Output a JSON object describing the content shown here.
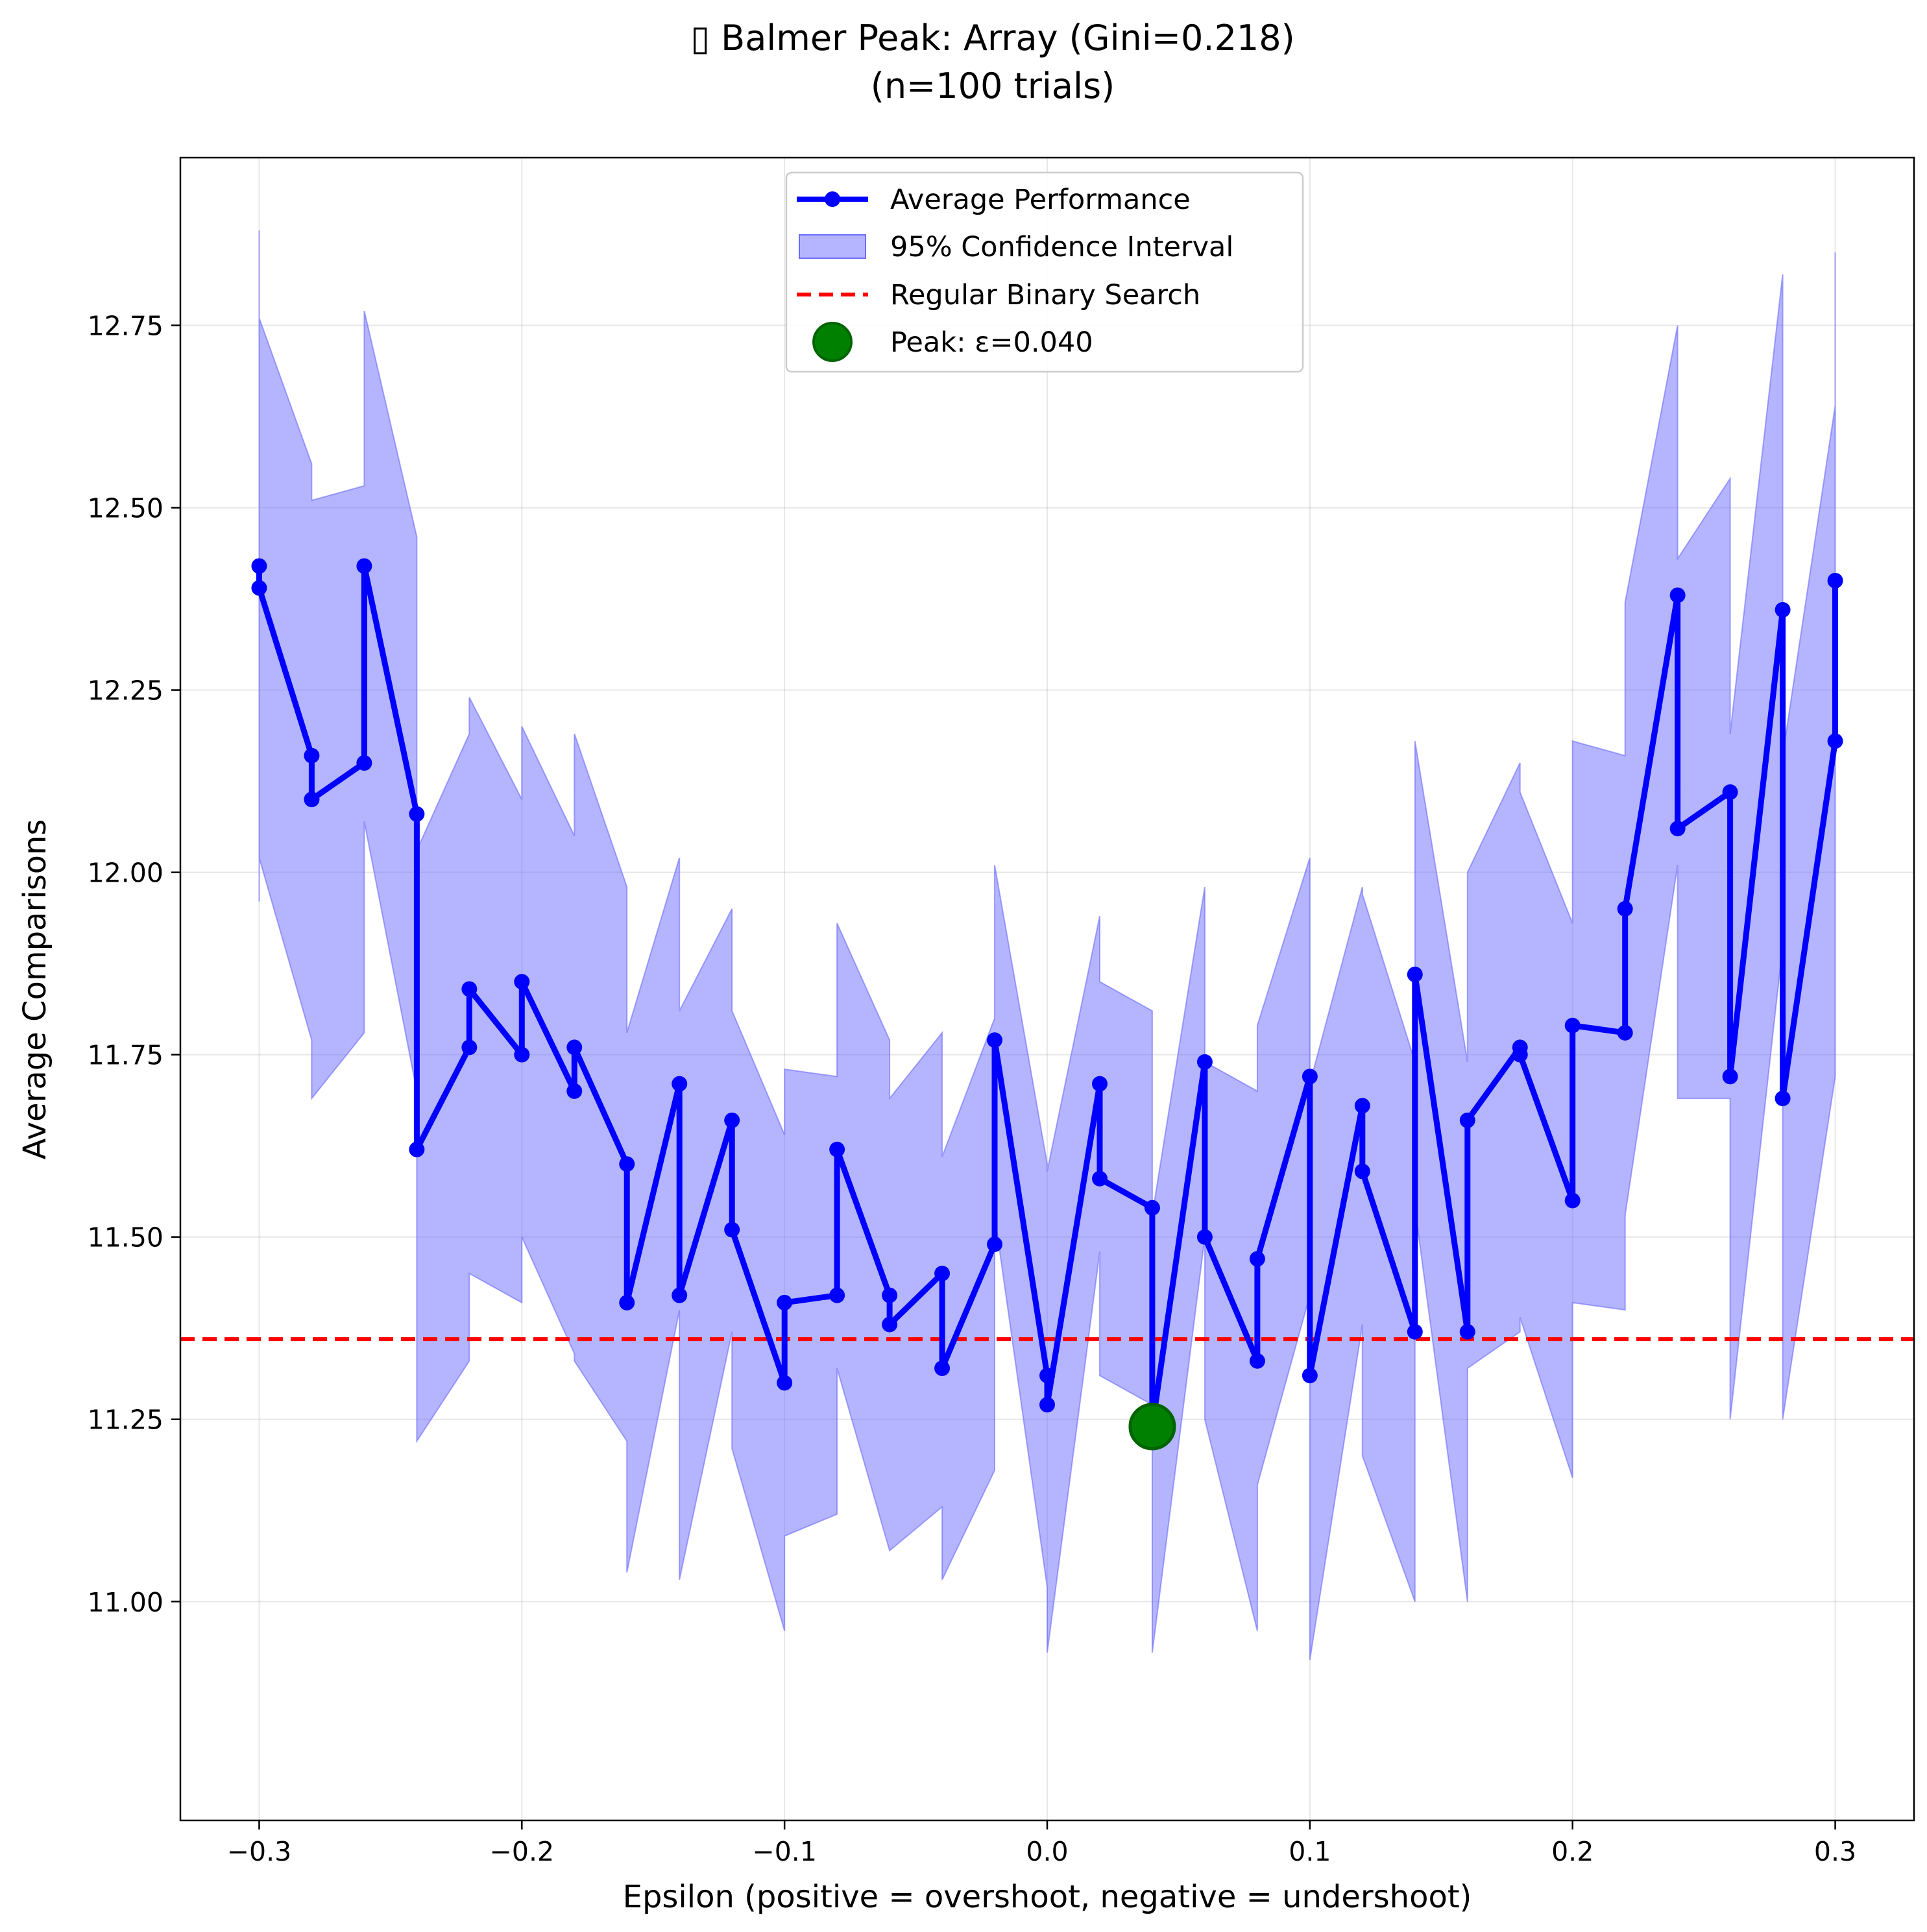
{
  "chart_data": {
    "type": "line",
    "title_line1": "▯ Balmer Peak: Array (Gini=0.218)",
    "title_line2": "(n=100 trials)",
    "xlabel": "Epsilon (positive = overshoot, negative = undershoot)",
    "ylabel": "Average Comparisons",
    "xlim": [
      -0.33,
      0.33
    ],
    "ylim": [
      10.7,
      12.98
    ],
    "grid": true,
    "legend_position": "upper center",
    "x_ticks": [
      -0.3,
      -0.2,
      -0.1,
      0.0,
      0.1,
      0.2,
      0.3
    ],
    "x_tick_labels": [
      "−0.3",
      "−0.2",
      "−0.1",
      "0.0",
      "0.1",
      "0.2",
      "0.3"
    ],
    "y_ticks": [
      11.0,
      11.25,
      11.5,
      11.75,
      12.0,
      12.25,
      12.5,
      12.75
    ],
    "y_tick_labels": [
      "11.00",
      "11.25",
      "11.50",
      "11.75",
      "12.00",
      "12.25",
      "12.50",
      "12.75"
    ],
    "legend": {
      "line": "Average Performance",
      "band": "95% Confidence Interval",
      "baseline": "Regular Binary Search",
      "peak": "Peak: ε=0.040"
    },
    "colors": {
      "line": "#0000ff",
      "band": "#6b6bff",
      "baseline": "#ff0000",
      "peak": "#008000"
    },
    "series": [
      {
        "name": "Average Performance",
        "x": [
          -0.3,
          -0.3,
          -0.28,
          -0.28,
          -0.26,
          -0.26,
          -0.24,
          -0.24,
          -0.22,
          -0.22,
          -0.2,
          -0.2,
          -0.18,
          -0.18,
          -0.16,
          -0.16,
          -0.14,
          -0.14,
          -0.12,
          -0.12,
          -0.1,
          -0.1,
          -0.08,
          -0.08,
          -0.06,
          -0.06,
          -0.04,
          -0.04,
          -0.02,
          -0.02,
          0.0,
          0.0,
          0.02,
          0.02,
          0.04,
          0.04,
          0.06,
          0.06,
          0.08,
          0.08,
          0.1,
          0.1,
          0.12,
          0.12,
          0.14,
          0.14,
          0.16,
          0.16,
          0.18,
          0.18,
          0.2,
          0.2,
          0.22,
          0.22,
          0.24,
          0.24,
          0.26,
          0.26,
          0.28,
          0.28,
          0.3,
          0.3
        ],
        "y": [
          12.42,
          12.39,
          12.16,
          12.1,
          12.15,
          12.42,
          12.08,
          11.62,
          11.76,
          11.84,
          11.75,
          11.85,
          11.7,
          11.76,
          11.6,
          11.41,
          11.71,
          11.42,
          11.66,
          11.51,
          11.3,
          11.41,
          11.42,
          11.62,
          11.42,
          11.38,
          11.45,
          11.32,
          11.49,
          11.77,
          11.31,
          11.27,
          11.71,
          11.58,
          11.54,
          11.24,
          11.74,
          11.5,
          11.33,
          11.47,
          11.72,
          11.31,
          11.68,
          11.59,
          11.37,
          11.86,
          11.37,
          11.66,
          11.76,
          11.75,
          11.55,
          11.79,
          11.78,
          11.95,
          12.38,
          12.06,
          12.11,
          11.72,
          12.36,
          11.69,
          12.18,
          12.4
        ],
        "ci_upper": [
          12.88,
          12.76,
          12.56,
          12.51,
          12.53,
          12.77,
          12.46,
          12.03,
          12.19,
          12.24,
          12.1,
          12.2,
          12.05,
          12.19,
          11.98,
          11.78,
          12.02,
          11.81,
          11.95,
          11.81,
          11.64,
          11.73,
          11.72,
          11.93,
          11.77,
          11.69,
          11.78,
          11.61,
          11.8,
          12.01,
          11.6,
          11.59,
          11.94,
          11.85,
          11.81,
          11.53,
          11.98,
          11.74,
          11.7,
          11.79,
          12.02,
          11.71,
          11.98,
          11.97,
          11.74,
          12.18,
          11.74,
          12.0,
          12.15,
          12.11,
          11.93,
          12.18,
          12.16,
          12.37,
          12.75,
          12.43,
          12.54,
          12.19,
          12.82,
          12.16,
          12.64,
          12.85
        ],
        "ci_lower": [
          11.96,
          12.02,
          11.77,
          11.69,
          11.78,
          12.07,
          11.7,
          11.22,
          11.33,
          11.45,
          11.41,
          11.5,
          11.34,
          11.33,
          11.22,
          11.04,
          11.4,
          11.03,
          11.37,
          11.21,
          10.96,
          11.09,
          11.12,
          11.32,
          11.07,
          11.07,
          11.13,
          11.03,
          11.18,
          11.53,
          11.02,
          10.93,
          11.48,
          11.31,
          11.27,
          10.93,
          11.5,
          11.25,
          10.96,
          11.16,
          11.42,
          10.92,
          11.38,
          11.2,
          11.0,
          11.54,
          11.0,
          11.32,
          11.37,
          11.39,
          11.17,
          11.41,
          11.4,
          11.53,
          12.01,
          11.69,
          11.69,
          11.25,
          11.9,
          11.25,
          11.72,
          12.17
        ]
      }
    ],
    "baseline_y": 11.36,
    "peak": {
      "x": 0.04,
      "y": 11.24
    }
  }
}
